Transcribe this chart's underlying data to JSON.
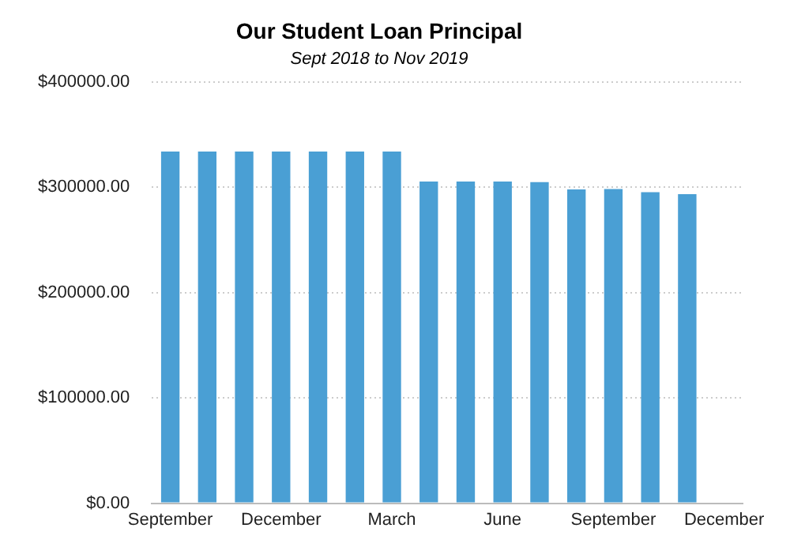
{
  "chart_data": {
    "type": "bar",
    "title": "Our Student Loan Principal",
    "subtitle": "Sept 2018 to Nov 2019",
    "categories": [
      "September",
      null,
      null,
      "December",
      null,
      null,
      "March",
      null,
      null,
      "June",
      null,
      null,
      "September",
      null,
      null,
      "December"
    ],
    "values": [
      334000,
      334000,
      334000,
      334000,
      334000,
      334000,
      334000,
      305500,
      305500,
      305500,
      305000,
      298000,
      298500,
      295500,
      293500,
      null
    ],
    "color": "#4a9fd4",
    "ylim": [
      0,
      400000
    ],
    "yticks": [
      {
        "value": 0,
        "label": "$0.00"
      },
      {
        "value": 100000,
        "label": "$100000.00"
      },
      {
        "value": 200000,
        "label": "$200000.00"
      },
      {
        "value": 300000,
        "label": "$300000.00"
      },
      {
        "value": 400000,
        "label": "$400000.00"
      }
    ],
    "grid": "y",
    "legend": false
  }
}
